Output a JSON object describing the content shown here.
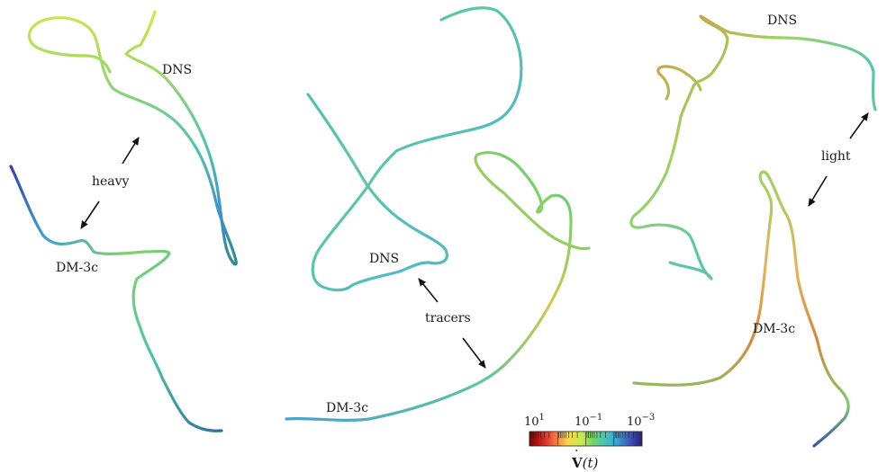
{
  "panels": [
    {
      "id": "heavy",
      "labels": {
        "dns": "DNS",
        "model": "DM-3c",
        "particle": "heavy"
      }
    },
    {
      "id": "tracers",
      "labels": {
        "dns": "DNS",
        "model": "DM-3c",
        "particle": "tracers"
      }
    },
    {
      "id": "light",
      "labels": {
        "dns": "DNS",
        "model": "DM-3c",
        "particle": "light"
      }
    }
  ],
  "colorbar": {
    "tick_labels": [
      "10",
      "10",
      "10"
    ],
    "tick_exponents": [
      "1",
      "−1",
      "−3"
    ],
    "title": "V",
    "title_arg": "(t)",
    "colors": [
      "#7f0000",
      "#d7191c",
      "#f46d43",
      "#fee08b",
      "#d9ef8b",
      "#91cf60",
      "#4fc9b0",
      "#3a9fd8",
      "#3d4fb5",
      "#2d1e6b"
    ]
  }
}
